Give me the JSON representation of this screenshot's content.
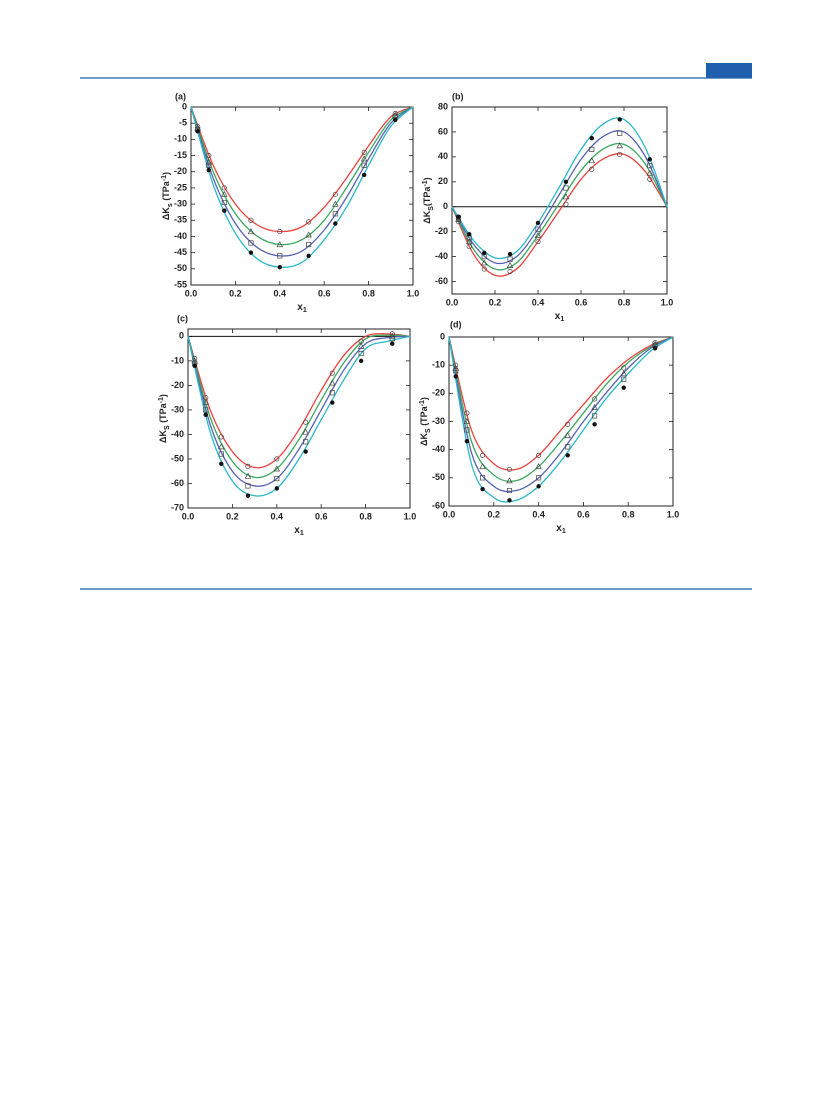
{
  "chart_data": [
    {
      "type": "scatter-fit",
      "panel_label": "(a)",
      "x_label": [
        "x",
        "1"
      ],
      "y_label": [
        "ΔK",
        "s",
        " (TPa",
        "-1",
        ")"
      ],
      "xlim": [
        0,
        1
      ],
      "xticks": [
        {
          "value": 0,
          "label": "0.0"
        },
        0.2,
        0.4,
        0.6,
        0.8,
        {
          "value": 1,
          "label": "1.0"
        }
      ],
      "ylim": [
        -55,
        0
      ],
      "yticks": [
        0,
        -5,
        -10,
        -15,
        -20,
        -25,
        -30,
        -35,
        -40,
        -45,
        -50,
        -55
      ],
      "x": [
        0.03,
        0.08,
        0.15,
        0.27,
        0.4,
        0.53,
        0.65,
        0.78,
        0.92
      ],
      "fit_x": [
        0,
        0.1,
        0.2,
        0.3,
        0.4,
        0.5,
        0.6,
        0.7,
        0.8,
        0.9,
        1
      ],
      "series": [
        {
          "color": "#e8433f",
          "marker": "circle-open",
          "values": [
            -6,
            -15,
            -25,
            -35,
            -38.5,
            -35.5,
            -27,
            -14,
            -2
          ],
          "fit": [
            0,
            -18,
            -30,
            -36.5,
            -38.5,
            -37,
            -31,
            -22,
            -12,
            -3,
            0
          ]
        },
        {
          "color": "#3aa860",
          "marker": "triangle-open",
          "values": [
            -6.5,
            -17,
            -27,
            -38.5,
            -42.5,
            -39.5,
            -30,
            -16,
            -2.5
          ],
          "fit": [
            0,
            -20,
            -33,
            -40,
            -42.5,
            -41,
            -35,
            -25,
            -14,
            -4,
            0
          ]
        },
        {
          "color": "#5662b0",
          "marker": "square-open",
          "values": [
            -7,
            -18,
            -29.5,
            -42,
            -46,
            -42.5,
            -33,
            -18,
            -3
          ],
          "fit": [
            0,
            -22,
            -36,
            -43.5,
            -46,
            -44.5,
            -38,
            -28,
            -16,
            -5,
            0
          ]
        },
        {
          "color": "#2ab8c8",
          "marker": "circle-filled",
          "values": [
            -7.5,
            -19.5,
            -32,
            -45,
            -49.5,
            -46,
            -36,
            -21,
            -4
          ],
          "fit": [
            0,
            -24,
            -39,
            -47,
            -49.5,
            -48,
            -41,
            -31,
            -18,
            -6,
            0
          ]
        }
      ]
    },
    {
      "type": "scatter-fit",
      "panel_label": "(b)",
      "x_label": [
        "x",
        "1"
      ],
      "y_label": [
        "ΔK",
        "S",
        "(TPa",
        "-1",
        ")"
      ],
      "xlim": [
        0,
        1
      ],
      "xticks": [
        {
          "value": 0,
          "label": "0.0"
        },
        0.2,
        0.4,
        0.6,
        0.8,
        {
          "value": 1,
          "label": "1.0"
        }
      ],
      "ylim": [
        -70,
        80
      ],
      "yticks": [
        -60,
        -40,
        -20,
        0,
        20,
        40,
        60,
        80
      ],
      "hline": 0,
      "x": [
        0.03,
        0.08,
        0.15,
        0.27,
        0.4,
        0.53,
        0.65,
        0.78,
        0.92
      ],
      "fit_x": [
        0,
        0.1,
        0.2,
        0.3,
        0.4,
        0.5,
        0.6,
        0.7,
        0.8,
        0.9,
        1
      ],
      "series": [
        {
          "color": "#e8433f",
          "marker": "circle-open",
          "values": [
            -12,
            -32,
            -50,
            -52,
            -28,
            2,
            30,
            42,
            22
          ],
          "fit": [
            0,
            -38,
            -55,
            -50,
            -28,
            -3,
            22,
            38,
            42,
            28,
            0
          ]
        },
        {
          "color": "#3aa860",
          "marker": "triangle-open",
          "values": [
            -10,
            -28,
            -45,
            -47,
            -23,
            8,
            37,
            49,
            27
          ],
          "fit": [
            0,
            -34,
            -50,
            -45,
            -23,
            3,
            29,
            46,
            50,
            34,
            0
          ]
        },
        {
          "color": "#5662b0",
          "marker": "square-open",
          "values": [
            -9,
            -25,
            -40,
            -42,
            -18,
            15,
            46,
            59,
            33
          ],
          "fit": [
            0,
            -30,
            -45,
            -40,
            -18,
            10,
            38,
            56,
            60,
            40,
            0
          ]
        },
        {
          "color": "#2ab8c8",
          "marker": "circle-filled",
          "values": [
            -8,
            -22,
            -37,
            -38,
            -13,
            20,
            55,
            70,
            38
          ],
          "fit": [
            0,
            -27,
            -41,
            -36,
            -13,
            16,
            46,
            66,
            70,
            47,
            0
          ]
        }
      ]
    },
    {
      "type": "scatter-fit",
      "panel_label": "(c)",
      "x_label": [
        "x",
        "1"
      ],
      "y_label": [
        "ΔK",
        "S",
        " (TPa",
        "-1",
        ")"
      ],
      "xlim": [
        0,
        1
      ],
      "xticks": [
        {
          "value": 0,
          "label": "0.0"
        },
        0.2,
        0.4,
        0.6,
        0.8,
        {
          "value": 1,
          "label": "1.0"
        }
      ],
      "ylim": [
        -70,
        3
      ],
      "yticks": [
        0,
        -10,
        -20,
        -30,
        -40,
        -50,
        -60,
        -70
      ],
      "hline": 0,
      "x": [
        0.03,
        0.08,
        0.15,
        0.27,
        0.4,
        0.53,
        0.65,
        0.78,
        0.92
      ],
      "fit_x": [
        0,
        0.1,
        0.2,
        0.3,
        0.4,
        0.5,
        0.6,
        0.7,
        0.8,
        0.9,
        1
      ],
      "series": [
        {
          "color": "#e8433f",
          "marker": "circle-open",
          "values": [
            -9,
            -25,
            -41,
            -53,
            -50,
            -35,
            -15,
            -2,
            1
          ],
          "fit": [
            0,
            -30,
            -47,
            -53.5,
            -50,
            -38,
            -22,
            -8,
            0,
            1,
            0
          ]
        },
        {
          "color": "#3aa860",
          "marker": "triangle-open",
          "values": [
            -10,
            -27,
            -45,
            -57,
            -54,
            -39,
            -19,
            -4,
            0
          ],
          "fit": [
            0,
            -33,
            -51,
            -57.5,
            -54,
            -42,
            -26,
            -11,
            -1,
            0.5,
            0
          ]
        },
        {
          "color": "#5662b0",
          "marker": "square-open",
          "values": [
            -11,
            -30,
            -48,
            -61,
            -58,
            -43,
            -23,
            -7,
            -1
          ],
          "fit": [
            0,
            -36,
            -55,
            -61,
            -58,
            -46,
            -30,
            -14,
            -3,
            -0.5,
            0
          ]
        },
        {
          "color": "#2ab8c8",
          "marker": "circle-filled",
          "values": [
            -12,
            -32,
            -52,
            -65,
            -62,
            -47,
            -27,
            -10,
            -3
          ],
          "fit": [
            0,
            -39,
            -59,
            -65,
            -62,
            -50,
            -34,
            -18,
            -5,
            -2,
            0
          ]
        }
      ]
    },
    {
      "type": "scatter-fit",
      "panel_label": "(d)",
      "x_label": [
        "x",
        "1"
      ],
      "y_label": [
        "ΔK",
        "S",
        " (TPa",
        "-1",
        ")"
      ],
      "xlim": [
        0,
        1
      ],
      "xticks": [
        {
          "value": 0,
          "label": "0.0"
        },
        0.2,
        0.4,
        0.6,
        0.8,
        {
          "value": 1,
          "label": "1.0"
        }
      ],
      "ylim": [
        -60,
        0
      ],
      "yticks": [
        0,
        -10,
        -20,
        -30,
        -40,
        -50,
        -60
      ],
      "x": [
        0.03,
        0.08,
        0.15,
        0.27,
        0.4,
        0.53,
        0.65,
        0.78,
        0.92
      ],
      "fit_x": [
        0,
        0.1,
        0.2,
        0.3,
        0.4,
        0.5,
        0.6,
        0.7,
        0.8,
        0.9,
        1
      ],
      "series": [
        {
          "color": "#e8433f",
          "marker": "circle-open",
          "values": [
            -10,
            -27,
            -42,
            -47,
            -42,
            -31,
            -22,
            -11,
            -2
          ],
          "fit": [
            0,
            -33,
            -45,
            -47,
            -42,
            -33,
            -24,
            -15,
            -8,
            -3,
            0
          ]
        },
        {
          "color": "#3aa860",
          "marker": "triangle-open",
          "values": [
            -11,
            -30,
            -46,
            -51,
            -46,
            -35,
            -25,
            -13,
            -2.5
          ],
          "fit": [
            0,
            -37,
            -49,
            -51,
            -46,
            -37,
            -27,
            -17,
            -9,
            -3.5,
            0
          ]
        },
        {
          "color": "#5662b0",
          "marker": "square-open",
          "values": [
            -12,
            -33,
            -50,
            -54.5,
            -50,
            -39,
            -28,
            -15,
            -3
          ],
          "fit": [
            0,
            -41,
            -53,
            -54.5,
            -50,
            -41,
            -30,
            -20,
            -11,
            -4,
            0
          ]
        },
        {
          "color": "#2ab8c8",
          "marker": "circle-filled",
          "values": [
            -14,
            -37,
            -54,
            -58,
            -53,
            -42,
            -31,
            -18,
            -4
          ],
          "fit": [
            0,
            -45,
            -57,
            -58,
            -53,
            -44,
            -33,
            -22,
            -13,
            -5,
            0
          ]
        }
      ]
    }
  ]
}
